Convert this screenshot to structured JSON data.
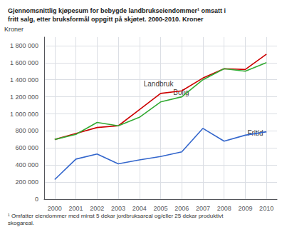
{
  "chart_data": {
    "type": "line",
    "title": "Gjennomsnittlig kjøpesum for bebygde landbrukseiendommer¹ omsatt i\nfritt salg, etter bruksformål oppgitt på skjøtet. 2000-2010. Kroner",
    "y_label": "Kroner",
    "footnote": "¹ Omfatter eiendommer med minst 5 dekar jordbruksareal og/eller 25 dekar produktivt\nskogareal.",
    "x": [
      2000,
      2001,
      2002,
      2003,
      2004,
      2005,
      2006,
      2007,
      2008,
      2009,
      2010
    ],
    "series": [
      {
        "name": "Landbruk",
        "color": "#cc0000",
        "values": [
          700000,
          770000,
          840000,
          860000,
          1050000,
          1240000,
          1270000,
          1420000,
          1530000,
          1520000,
          1700000
        ]
      },
      {
        "name": "Bolig",
        "color": "#33aa33",
        "values": [
          700000,
          760000,
          900000,
          860000,
          960000,
          1140000,
          1200000,
          1400000,
          1530000,
          1500000,
          1600000
        ]
      },
      {
        "name": "Fritid",
        "color": "#3366cc",
        "values": [
          230000,
          470000,
          530000,
          415000,
          460000,
          500000,
          555000,
          830000,
          680000,
          750000,
          790000
        ]
      }
    ],
    "annotations": [
      {
        "text": "Landbruk",
        "x": 2004.2,
        "y": 1295000
      },
      {
        "text": "Bolig",
        "x": 2005.6,
        "y": 1190000
      },
      {
        "text": "Fritid",
        "x": 2009.1,
        "y": 715000
      }
    ],
    "xlim": [
      1999.5,
      2010.5
    ],
    "xticks": [
      2000,
      2001,
      2002,
      2003,
      2004,
      2005,
      2006,
      2007,
      2008,
      2009,
      2010
    ],
    "ylim": [
      0,
      1900000
    ],
    "yticks": [
      0,
      {
        "value": 200000,
        "label": "200 000"
      },
      {
        "value": 400000,
        "label": "400 000"
      },
      {
        "value": 600000,
        "label": "600 000"
      },
      {
        "value": 800000,
        "label": "800 000"
      },
      {
        "value": 1000000,
        "label": "1 000 000"
      },
      {
        "value": 1200000,
        "label": "1 200 000"
      },
      {
        "value": 1400000,
        "label": "1 400 000"
      },
      {
        "value": 1600000,
        "label": "1 600 000"
      },
      {
        "value": 1800000,
        "label": "1 800 000"
      }
    ],
    "grid": true,
    "legend": false
  }
}
